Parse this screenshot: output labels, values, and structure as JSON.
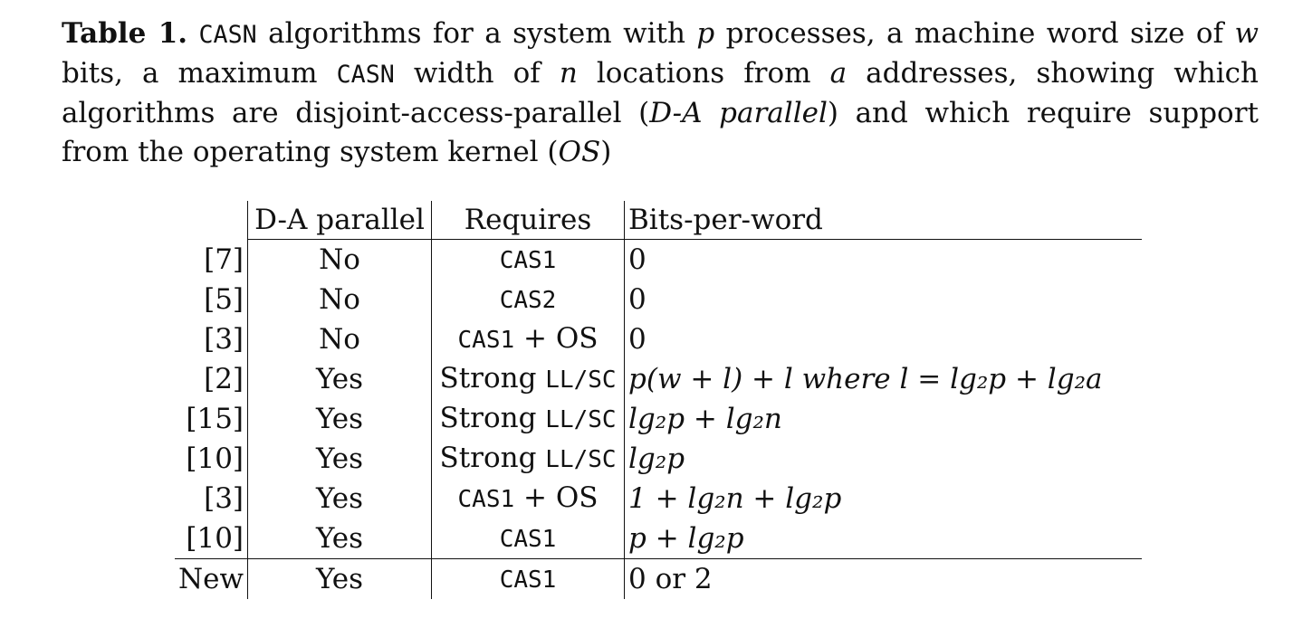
{
  "caption": {
    "label": "Table 1.",
    "casn_term": "CASN",
    "text_1": " algorithms for a system with ",
    "p": "p",
    "text_2": " processes, a machine word size of ",
    "w": "w",
    "text_3": " bits, a maximum ",
    "casn_term_2": "CASN",
    "text_4": " width of ",
    "n": "n",
    "text_5": " locations from ",
    "a": "a",
    "text_6": " addresses, showing which algorithms are disjoint-access-parallel (",
    "da_parallel": "D-A parallel",
    "text_7": ") and which require support from the operating system kernel (",
    "os": "OS",
    "text_8": ")"
  },
  "table": {
    "headers": [
      "",
      "D-A parallel",
      "Requires",
      "Bits-per-word"
    ],
    "rows": [
      {
        "ref": "[7]",
        "da": "No",
        "req_mono": "CAS1",
        "req_rest": "",
        "bits": "0"
      },
      {
        "ref": "[5]",
        "da": "No",
        "req_mono": "CAS2",
        "req_rest": "",
        "bits": "0"
      },
      {
        "ref": "[3]",
        "da": "No",
        "req_mono": "CAS1",
        "req_rest": " + OS",
        "bits": "0"
      },
      {
        "ref": "[2]",
        "da": "Yes",
        "req_pre": "Strong ",
        "req_mono": "LL/SC",
        "req_rest": "",
        "bits": "p(w + l) + l where l = lg₂p + lg₂a"
      },
      {
        "ref": "[15]",
        "da": "Yes",
        "req_pre": "Strong ",
        "req_mono": "LL/SC",
        "req_rest": "",
        "bits": "lg₂p + lg₂n"
      },
      {
        "ref": "[10]",
        "da": "Yes",
        "req_pre": "Strong ",
        "req_mono": "LL/SC",
        "req_rest": "",
        "bits": "lg₂p"
      },
      {
        "ref": "[3]",
        "da": "Yes",
        "req_mono": "CAS1",
        "req_rest": " + OS",
        "bits": "1 + lg₂n + lg₂p"
      },
      {
        "ref": "[10]",
        "da": "Yes",
        "req_mono": "CAS1",
        "req_rest": "",
        "bits": "p + lg₂p"
      },
      {
        "ref": "New",
        "da": "Yes",
        "req_mono": "CAS1",
        "req_rest": "",
        "bits": "0 or 2"
      }
    ]
  }
}
